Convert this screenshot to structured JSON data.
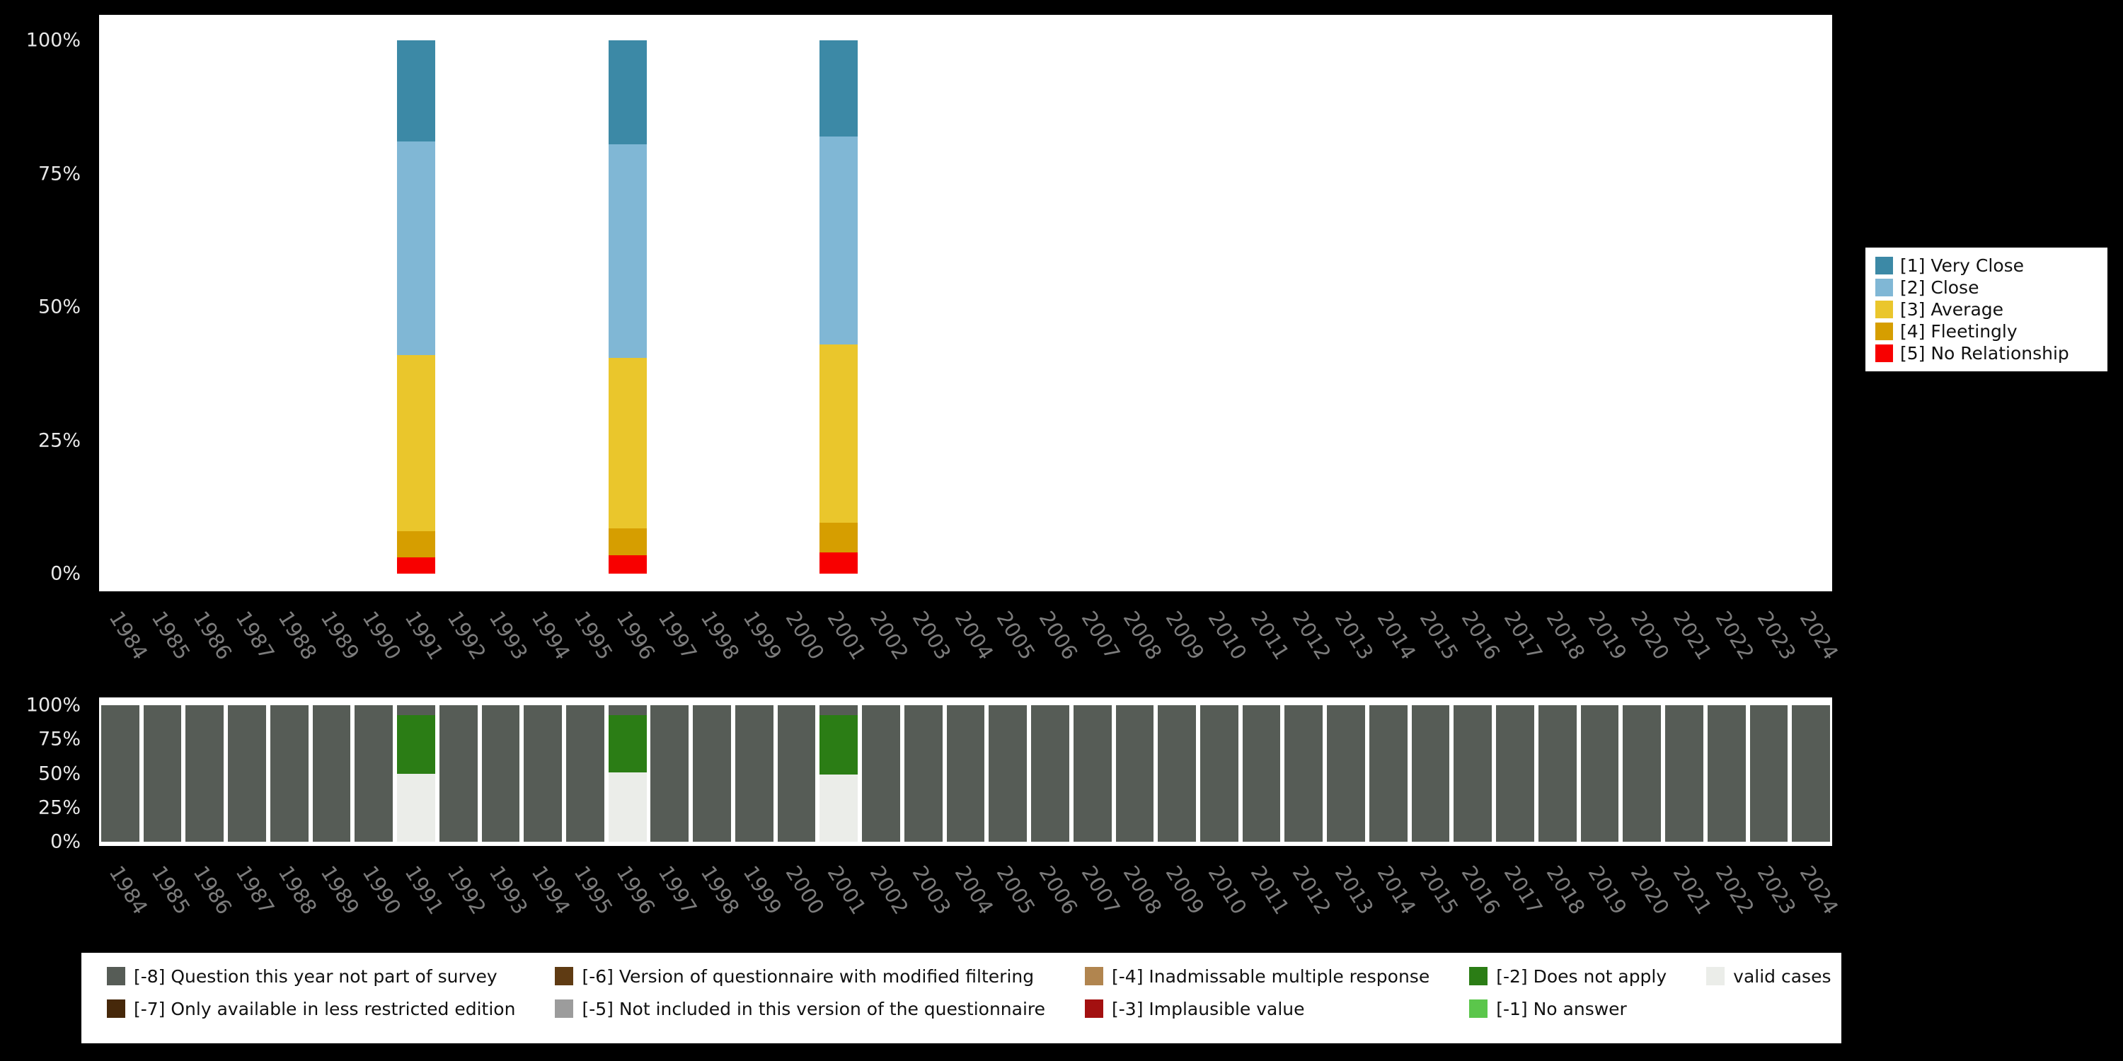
{
  "colors": {
    "background": "#000000",
    "plot_background": "#ffffff",
    "x_tick_text": "#7d7d7d",
    "y_tick_text": "#e8e8e8"
  },
  "chart_data": [
    {
      "type": "bar",
      "variant": "stacked-percent",
      "title": "",
      "xlabel": "",
      "ylabel": "",
      "ylim": [
        0,
        100
      ],
      "yticks": [
        "0%",
        "25%",
        "50%",
        "75%",
        "100%"
      ],
      "legend_position": "right",
      "x": [
        "1984",
        "1985",
        "1986",
        "1987",
        "1988",
        "1989",
        "1990",
        "1991",
        "1992",
        "1993",
        "1994",
        "1995",
        "1996",
        "1997",
        "1998",
        "1999",
        "2000",
        "2001",
        "2002",
        "2003",
        "2004",
        "2005",
        "2006",
        "2007",
        "2008",
        "2009",
        "2010",
        "2011",
        "2012",
        "2013",
        "2014",
        "2015",
        "2016",
        "2017",
        "2018",
        "2019",
        "2020",
        "2021",
        "2022",
        "2023",
        "2024"
      ],
      "stack_order_bottom_to_top": [
        "[5] No Relationship",
        "[4] Fleetingly",
        "[3] Average",
        "[2] Close",
        "[1] Very Close"
      ],
      "series": [
        {
          "name": "[1] Very Close",
          "color": "#3c89a6",
          "values": {
            "1991": 19,
            "1996": 19.5,
            "2001": 18
          }
        },
        {
          "name": "[2] Close",
          "color": "#80b7d5",
          "values": {
            "1991": 40,
            "1996": 40,
            "2001": 39
          }
        },
        {
          "name": "[3] Average",
          "color": "#eac62c",
          "values": {
            "1991": 33,
            "1996": 32,
            "2001": 33.5
          }
        },
        {
          "name": "[4] Fleetingly",
          "color": "#d69e00",
          "values": {
            "1991": 5,
            "1996": 5,
            "2001": 5.5
          }
        },
        {
          "name": "[5] No Relationship",
          "color": "#f80000",
          "values": {
            "1991": 3,
            "1996": 3.5,
            "2001": 4
          }
        }
      ]
    },
    {
      "type": "bar",
      "variant": "stacked-percent",
      "title": "",
      "xlabel": "",
      "ylabel": "",
      "ylim": [
        0,
        100
      ],
      "yticks": [
        "0%",
        "25%",
        "50%",
        "75%",
        "100%"
      ],
      "legend_position": "bottom",
      "x": [
        "1984",
        "1985",
        "1986",
        "1987",
        "1988",
        "1989",
        "1990",
        "1991",
        "1992",
        "1993",
        "1994",
        "1995",
        "1996",
        "1997",
        "1998",
        "1999",
        "2000",
        "2001",
        "2002",
        "2003",
        "2004",
        "2005",
        "2006",
        "2007",
        "2008",
        "2009",
        "2010",
        "2011",
        "2012",
        "2013",
        "2014",
        "2015",
        "2016",
        "2017",
        "2018",
        "2019",
        "2020",
        "2021",
        "2022",
        "2023",
        "2024"
      ],
      "stack_order_bottom_to_top": [
        "valid cases",
        "[-1] No answer",
        "[-2] Does not apply",
        "[-3] Implausible value",
        "[-4] Inadmissable multiple response",
        "[-5] Not included in this version of the questionnaire",
        "[-6] Version of questionnaire with modified filtering",
        "[-7] Only available in less restricted edition",
        "[-8] Question this year not part of survey"
      ],
      "series": [
        {
          "name": "valid cases",
          "color": "#ebede9",
          "values": {
            "1991": 50,
            "1996": 51,
            "2001": 49
          }
        },
        {
          "name": "[-1] No answer",
          "color": "#5bc64b",
          "values": {}
        },
        {
          "name": "[-2] Does not apply",
          "color": "#2b7d15",
          "values": {
            "1991": 43,
            "1996": 42,
            "2001": 44
          }
        },
        {
          "name": "[-3] Implausible value",
          "color": "#a31010",
          "values": {}
        },
        {
          "name": "[-4] Inadmissable multiple response",
          "color": "#b1854f",
          "values": {}
        },
        {
          "name": "[-5] Not included in this version of the questionnaire",
          "color": "#9c9c9c",
          "values": {}
        },
        {
          "name": "[-6] Version of questionnaire with modified filtering",
          "color": "#5f3b13",
          "values": {}
        },
        {
          "name": "[-7] Only available in less restricted edition",
          "color": "#46280a",
          "values": {}
        },
        {
          "name": "[-8] Question this year not part of survey",
          "color": "#565c56",
          "values": {
            "default": 100,
            "1991": 7,
            "1996": 7,
            "2001": 7
          }
        }
      ]
    }
  ],
  "top_legend": {
    "items": [
      {
        "label": "[1] Very Close",
        "color": "#3c89a6"
      },
      {
        "label": "[2] Close",
        "color": "#80b7d5"
      },
      {
        "label": "[3] Average",
        "color": "#eac62c"
      },
      {
        "label": "[4] Fleetingly",
        "color": "#d69e00"
      },
      {
        "label": "[5] No Relationship",
        "color": "#f80000"
      }
    ]
  },
  "bottom_legend": {
    "columns": [
      [
        {
          "label": "[-8] Question this year not part of survey",
          "color": "#565c56"
        },
        {
          "label": "[-7] Only available in less restricted edition",
          "color": "#46280a"
        }
      ],
      [
        {
          "label": "[-6] Version of questionnaire with modified filtering",
          "color": "#5f3b13"
        },
        {
          "label": "[-5] Not included in this version of the questionnaire",
          "color": "#9c9c9c"
        }
      ],
      [
        {
          "label": "[-4] Inadmissable multiple response",
          "color": "#b1854f"
        },
        {
          "label": "[-3] Implausible value",
          "color": "#a31010"
        }
      ],
      [
        {
          "label": "[-2] Does not apply",
          "color": "#2b7d15"
        },
        {
          "label": "[-1] No answer",
          "color": "#5bc64b"
        }
      ],
      [
        {
          "label": "valid cases",
          "color": "#ebede9"
        }
      ]
    ]
  }
}
